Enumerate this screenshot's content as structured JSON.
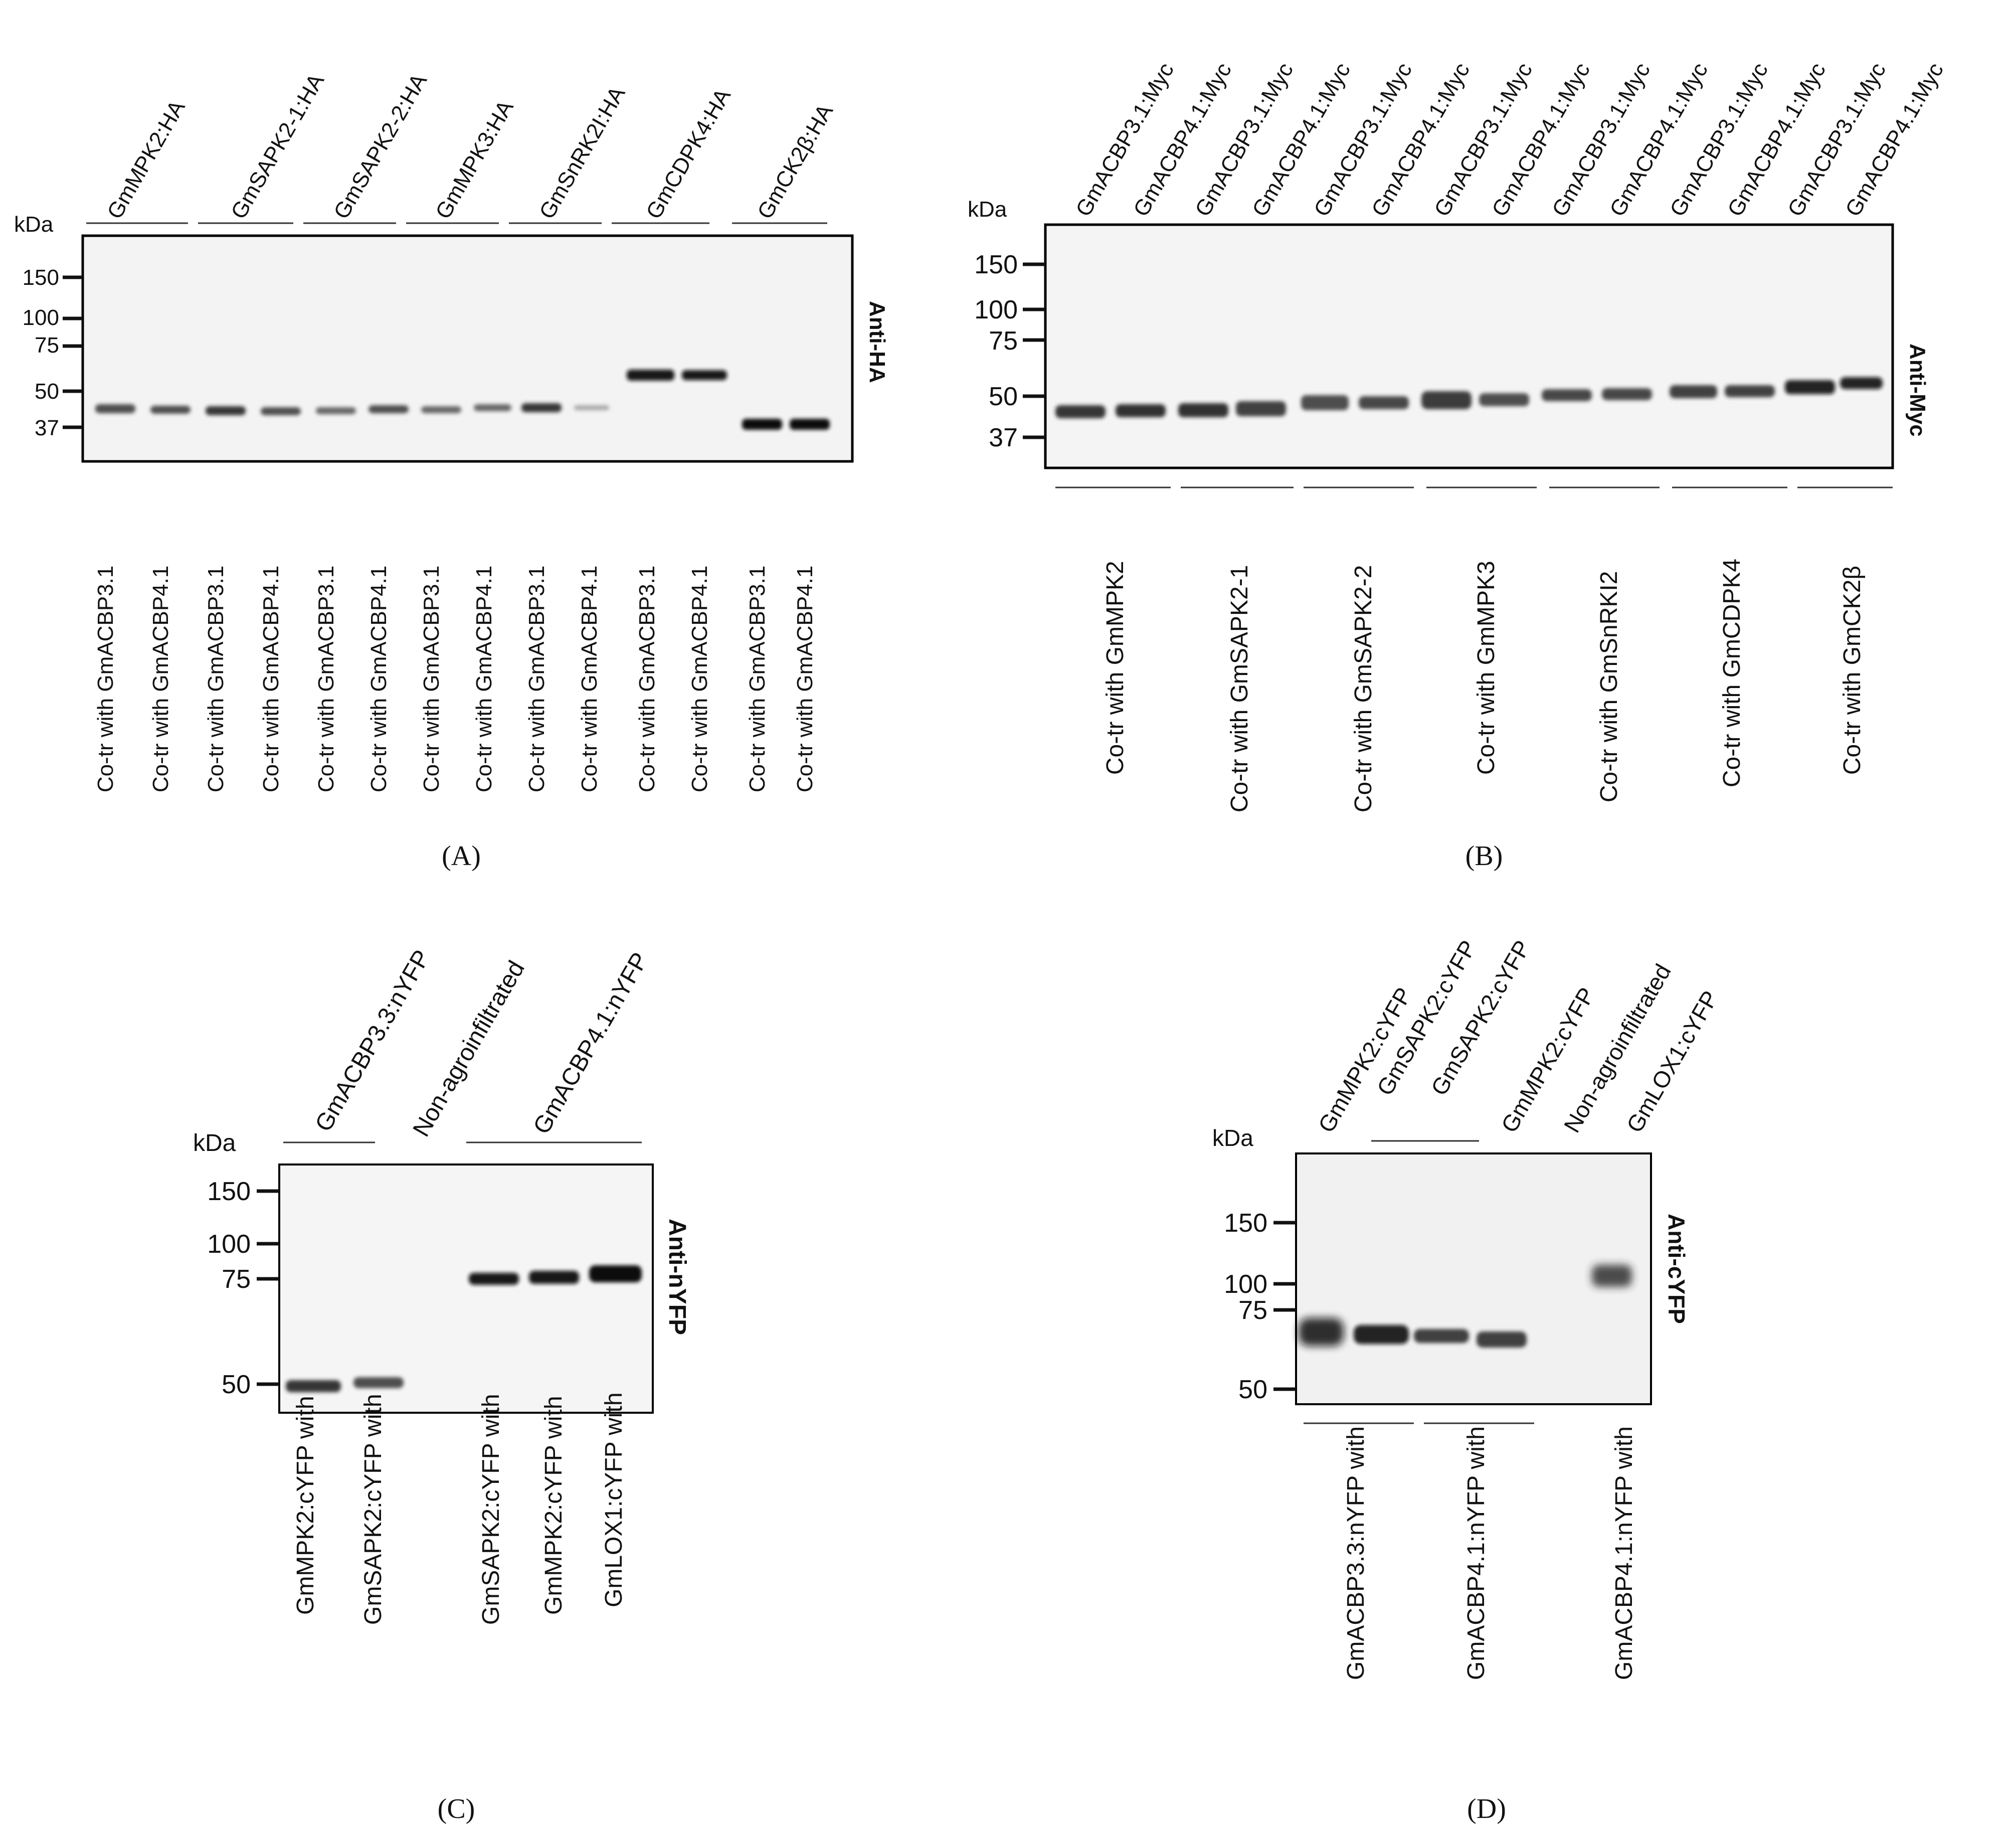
{
  "figure": {
    "panels": [
      {
        "letter": "A",
        "caption": "(A)",
        "kda_label": "kDa",
        "antibody": "Anti-HA",
        "markers": [
          "150",
          "100",
          "75",
          "50",
          "37"
        ],
        "groups": [
          "GmMPK2:HA",
          "GmSAPK2-1:HA",
          "GmSAPK2-2:HA",
          "GmMPK3:HA",
          "GmSnRK2I:HA",
          "GmCDPK4:HA",
          "GmCK2β:HA"
        ],
        "lanes": [
          "Co-tr with GmACBP3.1",
          "Co-tr with GmACBP4.1",
          "Co-tr with GmACBP3.1",
          "Co-tr with GmACBP4.1",
          "Co-tr with GmACBP3.1",
          "Co-tr with GmACBP4.1",
          "Co-tr with GmACBP3.1",
          "Co-tr with GmACBP4.1",
          "Co-tr with GmACBP3.1",
          "Co-tr with GmACBP4.1",
          "Co-tr with GmACBP3.1",
          "Co-tr with GmACBP4.1",
          "Co-tr with GmACBP3.1",
          "Co-tr with GmACBP4.1"
        ]
      },
      {
        "letter": "B",
        "caption": "(B)",
        "kda_label": "kDa",
        "antibody": "Anti-Myc",
        "markers": [
          "150",
          "100",
          "75",
          "50",
          "37"
        ],
        "lanes": [
          "GmACBP3.1:Myc",
          "GmACBP4.1:Myc",
          "GmACBP3.1:Myc",
          "GmACBP4.1:Myc",
          "GmACBP3.1:Myc",
          "GmACBP4.1:Myc",
          "GmACBP3.1:Myc",
          "GmACBP4.1:Myc",
          "GmACBP3.1:Myc",
          "GmACBP4.1:Myc",
          "GmACBP3.1:Myc",
          "GmACBP4.1:Myc",
          "GmACBP3.1:Myc",
          "GmACBP4.1:Myc"
        ],
        "groups": [
          "Co-tr with GmMPK2",
          "Co-tr with GmSAPK2-1",
          "Co-tr with GmSAPK2-2",
          "Co-tr with GmMPK3",
          "Co-tr  with GmSnRKI2",
          "Co-tr with GmCDPK4",
          "Co-tr with GmCK2β"
        ]
      },
      {
        "letter": "C",
        "caption": "(C)",
        "kda_label": "kDa",
        "antibody": "Anti-nYFP",
        "markers": [
          "150",
          "100",
          "75",
          "50"
        ],
        "top_labels": [
          "GmACBP3.3:nYFP",
          "Non-agroinfiltrated",
          "GmACBP4.1:nYFP"
        ],
        "lanes": [
          "GmMPK2:cYFP with",
          "GmSAPK2:cYFP with",
          "GmSAPK2:cYFP with",
          "GmMPK2:cYFP with",
          "GmLOX1:cYFP with"
        ]
      },
      {
        "letter": "D",
        "caption": "(D)",
        "kda_label": "kDa",
        "antibody": "Anti-cYFP",
        "markers": [
          "150",
          "100",
          "75",
          "50"
        ],
        "top_labels": [
          "GmMPK2:cYFP",
          "GmSAPK2:cYFP",
          "GmSAPK2:cYFP",
          "GmMPK2:cYFP",
          "Non-agroinfiltrated",
          "GmLOX1:cYFP"
        ],
        "bottom_labels": [
          "GmACBP3.3:nYFP with",
          "GmACBP4.1:nYFP with",
          "GmACBP4.1:nYFP with"
        ]
      }
    ]
  }
}
